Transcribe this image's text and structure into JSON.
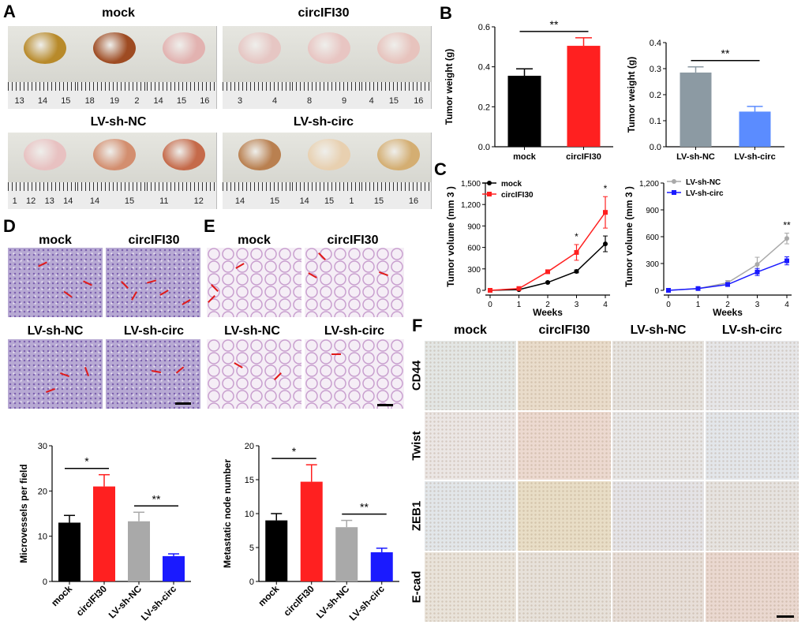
{
  "panel_letters": {
    "A": "A",
    "B": "B",
    "C": "C",
    "D": "D",
    "E": "E",
    "F": "F"
  },
  "panelA": {
    "groups": [
      "mock",
      "circIFI30",
      "LV-sh-NC",
      "LV-sh-circ"
    ],
    "ruler_numbers": [
      [
        "13",
        "14",
        "15"
      ],
      [
        "18",
        "19",
        "2"
      ],
      [
        "14",
        "15",
        "16"
      ],
      [
        "3",
        "4"
      ],
      [
        "8",
        "9"
      ],
      [
        "4",
        "15",
        "16"
      ],
      [
        "1",
        "12",
        "13",
        "14"
      ],
      [
        "14",
        "15"
      ],
      [
        "11",
        "12"
      ],
      [
        "14",
        "15"
      ],
      [
        "14",
        "15",
        "1"
      ],
      [
        "15",
        "16"
      ]
    ]
  },
  "panelD_labels": [
    "mock",
    "circIFI30",
    "LV-sh-NC",
    "LV-sh-circ"
  ],
  "panelE_labels": [
    "mock",
    "circIFI30",
    "LV-sh-NC",
    "LV-sh-circ"
  ],
  "panelF": {
    "columns": [
      "mock",
      "circIFI30",
      "LV-sh-NC",
      "LV-sh-circ"
    ],
    "rows": [
      "CD44",
      "Twist",
      "ZEB1",
      "E-cad"
    ]
  },
  "colors": {
    "black": "#000000",
    "red": "#ff2020",
    "gray": "#a9a9a9",
    "blue": "#1a1aff",
    "steel": "#8c9aa3",
    "lightblue": "#5b8cff"
  },
  "chart_data": [
    {
      "id": "B-left",
      "type": "bar",
      "title": "",
      "ylabel": "Tumor weight (g)",
      "categories": [
        "mock",
        "circIFI30"
      ],
      "values": [
        0.355,
        0.505
      ],
      "errors": [
        0.035,
        0.04
      ],
      "ylim": [
        0,
        0.6
      ],
      "yticks": [
        "0.0",
        "0.2",
        "0.4",
        "0.6"
      ],
      "significance": "**"
    },
    {
      "id": "B-right",
      "type": "bar",
      "title": "",
      "ylabel": "Tumor weight (g)",
      "categories": [
        "LV-sh-NC",
        "LV-sh-circ"
      ],
      "values": [
        0.285,
        0.135
      ],
      "errors": [
        0.022,
        0.02
      ],
      "ylim": [
        0,
        0.4
      ],
      "yticks": [
        "0.0",
        "0.1",
        "0.2",
        "0.3",
        "0.4"
      ],
      "significance": "**"
    },
    {
      "id": "C-left",
      "type": "line",
      "xlabel": "Weeks",
      "ylabel": "Tumor volume (mm 3 )",
      "x": [
        0,
        1,
        2,
        3,
        4
      ],
      "ylim": [
        0,
        1500
      ],
      "yticks": [
        "0",
        "300",
        "600",
        "900",
        "1,200",
        "1,500"
      ],
      "series": [
        {
          "name": "mock",
          "values": [
            0,
            10,
            110,
            265,
            650
          ],
          "errors": [
            0,
            5,
            10,
            20,
            110
          ]
        },
        {
          "name": "circIFI30",
          "values": [
            0,
            25,
            260,
            530,
            1090
          ],
          "errors": [
            0,
            5,
            15,
            110,
            220
          ]
        }
      ],
      "annotations": [
        {
          "x": 3,
          "text": "*"
        },
        {
          "x": 4,
          "text": "*"
        }
      ]
    },
    {
      "id": "C-right",
      "type": "line",
      "xlabel": "Weeks",
      "ylabel": "Tumor volume (mm 3 )",
      "x": [
        0,
        1,
        2,
        3,
        4
      ],
      "ylim": [
        0,
        1200
      ],
      "yticks": [
        "0",
        "300",
        "600",
        "900",
        "1,200"
      ],
      "series": [
        {
          "name": "LV-sh-NC",
          "values": [
            0,
            20,
            85,
            290,
            580
          ],
          "errors": [
            0,
            5,
            25,
            80,
            60
          ]
        },
        {
          "name": "LV-sh-circ",
          "values": [
            0,
            20,
            65,
            205,
            330
          ],
          "errors": [
            0,
            5,
            20,
            40,
            45
          ]
        }
      ],
      "annotations": [
        {
          "x": 4,
          "text": "**"
        }
      ]
    },
    {
      "id": "D-bar",
      "type": "bar",
      "ylabel": "Microvessels per field",
      "categories": [
        "mock",
        "circIFI30",
        "LV-sh-NC",
        "LV-sh-circ"
      ],
      "values": [
        13,
        21,
        13.3,
        5.6
      ],
      "errors": [
        1.6,
        2.6,
        2,
        0.5
      ],
      "ylim": [
        0,
        30
      ],
      "yticks": [
        "0",
        "10",
        "20",
        "30"
      ],
      "significance": [
        {
          "pair": [
            0,
            1
          ],
          "text": "*"
        },
        {
          "pair": [
            2,
            3
          ],
          "text": "**"
        }
      ]
    },
    {
      "id": "E-bar",
      "type": "bar",
      "ylabel": "Metastatic node number",
      "categories": [
        "mock",
        "circIFI30",
        "LV-sh-NC",
        "LV-sh-circ"
      ],
      "values": [
        9,
        14.7,
        8,
        4.3
      ],
      "errors": [
        1,
        2.5,
        1,
        0.6
      ],
      "ylim": [
        0,
        20
      ],
      "yticks": [
        "0",
        "5",
        "10",
        "15",
        "20"
      ],
      "significance": [
        {
          "pair": [
            0,
            1
          ],
          "text": "*"
        },
        {
          "pair": [
            2,
            3
          ],
          "text": "**"
        }
      ]
    }
  ]
}
